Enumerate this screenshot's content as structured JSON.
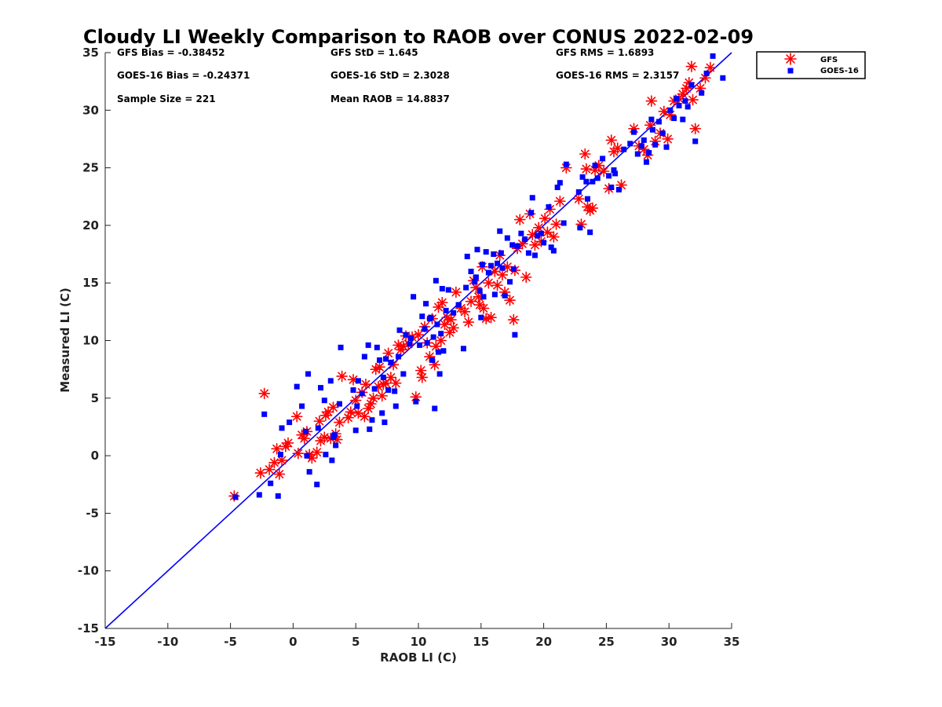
{
  "chart_data": {
    "type": "scatter",
    "title": "Cloudy LI Weekly Comparison to RAOB over CONUS 2022-02-09",
    "xlabel": "RAOB LI (C)",
    "ylabel": "Measured LI (C)",
    "xlim": [
      -15,
      35
    ],
    "ylim": [
      -15,
      35
    ],
    "xticks": [
      -15,
      -10,
      -5,
      0,
      5,
      10,
      15,
      20,
      25,
      30,
      35
    ],
    "yticks": [
      -15,
      -10,
      -5,
      0,
      5,
      10,
      15,
      20,
      25,
      30,
      35
    ],
    "grid": false,
    "legend_position": "outside top-right",
    "reference_line": {
      "x": [
        -15,
        35
      ],
      "y": [
        -15,
        35
      ],
      "color": "#0000ff"
    },
    "stats": {
      "gfs_bias": "GFS Bias = -0.38452",
      "goes_bias": "GOES-16 Bias = -0.24371",
      "sample_size": "Sample Size = 221",
      "gfs_std": "GFS StD = 1.645",
      "goes_std": "GOES-16 StD = 2.3028",
      "mean_raob": "Mean RAOB = 14.8837",
      "gfs_rms": "GFS RMS = 1.6893",
      "goes_rms": "GOES-16 RMS = 2.3157"
    },
    "series": [
      {
        "name": "GFS",
        "marker": "asterisk",
        "color": "#ff0000",
        "points": [
          [
            -4.7,
            -3.5
          ],
          [
            -2.6,
            -1.5
          ],
          [
            -2.3,
            5.4
          ],
          [
            -1.9,
            -1.2
          ],
          [
            -1.5,
            -0.6
          ],
          [
            -1.3,
            0.6
          ],
          [
            -1.1,
            -1.6
          ],
          [
            -0.9,
            -0.4
          ],
          [
            -0.6,
            0.8
          ],
          [
            -0.4,
            1.1
          ],
          [
            0.3,
            3.4
          ],
          [
            0.4,
            0.2
          ],
          [
            0.7,
            1.8
          ],
          [
            0.9,
            1.5
          ],
          [
            1.1,
            2.1
          ],
          [
            1.3,
            0.1
          ],
          [
            1.5,
            -0.2
          ],
          [
            1.9,
            0.3
          ],
          [
            2.1,
            3.0
          ],
          [
            2.2,
            1.3
          ],
          [
            2.5,
            1.6
          ],
          [
            2.6,
            3.5
          ],
          [
            2.8,
            3.8
          ],
          [
            3.0,
            1.5
          ],
          [
            3.2,
            4.2
          ],
          [
            3.4,
            1.9
          ],
          [
            3.5,
            1.4
          ],
          [
            3.7,
            2.9
          ],
          [
            3.9,
            6.9
          ],
          [
            4.4,
            3.3
          ],
          [
            4.6,
            3.8
          ],
          [
            4.8,
            6.6
          ],
          [
            5.0,
            4.8
          ],
          [
            5.2,
            3.7
          ],
          [
            5.5,
            5.5
          ],
          [
            5.7,
            3.4
          ],
          [
            5.8,
            6.2
          ],
          [
            6.0,
            4.1
          ],
          [
            6.2,
            4.5
          ],
          [
            6.4,
            5.0
          ],
          [
            6.6,
            7.5
          ],
          [
            6.8,
            6.0
          ],
          [
            6.9,
            7.7
          ],
          [
            7.1,
            5.2
          ],
          [
            7.2,
            6.2
          ],
          [
            7.4,
            6.3
          ],
          [
            7.6,
            8.9
          ],
          [
            7.8,
            6.8
          ],
          [
            8.0,
            7.9
          ],
          [
            8.2,
            6.3
          ],
          [
            8.4,
            9.6
          ],
          [
            8.6,
            9.2
          ],
          [
            8.8,
            9.5
          ],
          [
            9.0,
            10.4
          ],
          [
            9.2,
            9.7
          ],
          [
            9.5,
            10.3
          ],
          [
            9.8,
            5.1
          ],
          [
            10.0,
            10.5
          ],
          [
            10.2,
            7.4
          ],
          [
            10.3,
            6.8
          ],
          [
            10.5,
            11.2
          ],
          [
            10.7,
            9.8
          ],
          [
            10.9,
            8.6
          ],
          [
            11.1,
            11.9
          ],
          [
            11.3,
            7.9
          ],
          [
            11.4,
            9.5
          ],
          [
            11.6,
            12.9
          ],
          [
            11.8,
            10.0
          ],
          [
            11.9,
            13.3
          ],
          [
            12.1,
            11.4
          ],
          [
            12.3,
            12.0
          ],
          [
            12.5,
            10.7
          ],
          [
            12.6,
            11.8
          ],
          [
            12.8,
            11.1
          ],
          [
            13.0,
            14.2
          ],
          [
            13.4,
            12.8
          ],
          [
            13.7,
            12.5
          ],
          [
            14.0,
            11.6
          ],
          [
            14.2,
            13.4
          ],
          [
            14.4,
            15.2
          ],
          [
            14.6,
            14.6
          ],
          [
            14.8,
            13.8
          ],
          [
            14.9,
            13.1
          ],
          [
            15.1,
            16.4
          ],
          [
            15.2,
            12.8
          ],
          [
            15.4,
            11.9
          ],
          [
            15.6,
            15.0
          ],
          [
            15.8,
            12.0
          ],
          [
            16.1,
            16.0
          ],
          [
            16.3,
            14.8
          ],
          [
            16.5,
            17.4
          ],
          [
            16.7,
            15.7
          ],
          [
            16.9,
            14.2
          ],
          [
            17.1,
            16.4
          ],
          [
            17.3,
            13.5
          ],
          [
            17.6,
            11.8
          ],
          [
            17.7,
            16.1
          ],
          [
            17.9,
            18.0
          ],
          [
            18.1,
            20.5
          ],
          [
            18.3,
            18.4
          ],
          [
            18.6,
            15.5
          ],
          [
            18.9,
            21.0
          ],
          [
            19.1,
            19.2
          ],
          [
            19.3,
            18.3
          ],
          [
            19.6,
            19.8
          ],
          [
            19.8,
            18.6
          ],
          [
            20.1,
            20.6
          ],
          [
            20.3,
            19.4
          ],
          [
            20.5,
            21.4
          ],
          [
            20.8,
            19.0
          ],
          [
            21.0,
            20.1
          ],
          [
            21.3,
            22.1
          ],
          [
            21.8,
            25.0
          ],
          [
            22.8,
            22.3
          ],
          [
            23.0,
            20.1
          ],
          [
            23.3,
            26.2
          ],
          [
            23.4,
            24.9
          ],
          [
            23.5,
            21.6
          ],
          [
            23.7,
            21.3
          ],
          [
            23.9,
            21.5
          ],
          [
            24.1,
            24.8
          ],
          [
            24.4,
            25.2
          ],
          [
            24.8,
            24.7
          ],
          [
            25.2,
            23.2
          ],
          [
            25.4,
            27.4
          ],
          [
            25.6,
            26.4
          ],
          [
            25.9,
            26.7
          ],
          [
            26.2,
            23.5
          ],
          [
            27.2,
            28.4
          ],
          [
            27.6,
            26.9
          ],
          [
            28.0,
            26.6
          ],
          [
            28.3,
            26.1
          ],
          [
            28.5,
            28.7
          ],
          [
            28.6,
            30.8
          ],
          [
            28.9,
            27.3
          ],
          [
            29.3,
            28.0
          ],
          [
            29.6,
            29.9
          ],
          [
            29.9,
            27.5
          ],
          [
            30.1,
            29.6
          ],
          [
            30.4,
            30.8
          ],
          [
            30.8,
            31.0
          ],
          [
            31.1,
            31.4
          ],
          [
            31.4,
            31.9
          ],
          [
            31.8,
            33.8
          ],
          [
            31.9,
            30.9
          ],
          [
            32.1,
            28.4
          ],
          [
            32.5,
            31.9
          ],
          [
            32.9,
            32.8
          ],
          [
            33.3,
            33.7
          ],
          [
            31.6,
            32.4
          ]
        ]
      },
      {
        "name": "GOES-16",
        "marker": "square",
        "color": "#0000ff",
        "points": [
          [
            -4.6,
            -3.6
          ],
          [
            -2.7,
            -3.4
          ],
          [
            -2.3,
            3.6
          ],
          [
            -1.8,
            -2.4
          ],
          [
            -1.2,
            -3.5
          ],
          [
            -1.0,
            0.1
          ],
          [
            -0.9,
            2.4
          ],
          [
            -0.3,
            2.9
          ],
          [
            0.3,
            6.0
          ],
          [
            0.7,
            4.3
          ],
          [
            1.0,
            2.1
          ],
          [
            1.1,
            0.0
          ],
          [
            1.2,
            7.1
          ],
          [
            1.3,
            -1.4
          ],
          [
            1.9,
            -2.5
          ],
          [
            2.0,
            2.4
          ],
          [
            2.2,
            5.9
          ],
          [
            2.5,
            4.8
          ],
          [
            2.6,
            0.1
          ],
          [
            3.0,
            6.5
          ],
          [
            3.1,
            -0.4
          ],
          [
            3.2,
            1.6
          ],
          [
            3.3,
            1.8
          ],
          [
            3.4,
            0.9
          ],
          [
            3.7,
            4.5
          ],
          [
            3.8,
            9.4
          ],
          [
            4.8,
            5.7
          ],
          [
            5.0,
            2.2
          ],
          [
            5.1,
            4.3
          ],
          [
            5.2,
            6.5
          ],
          [
            5.5,
            5.4
          ],
          [
            5.7,
            8.6
          ],
          [
            6.0,
            9.6
          ],
          [
            6.1,
            2.3
          ],
          [
            6.3,
            3.1
          ],
          [
            6.5,
            5.8
          ],
          [
            6.7,
            9.4
          ],
          [
            6.9,
            8.3
          ],
          [
            7.1,
            3.7
          ],
          [
            7.2,
            6.8
          ],
          [
            7.3,
            2.9
          ],
          [
            7.4,
            8.4
          ],
          [
            7.6,
            5.7
          ],
          [
            7.8,
            8.1
          ],
          [
            8.1,
            5.6
          ],
          [
            8.2,
            4.3
          ],
          [
            8.4,
            8.6
          ],
          [
            8.5,
            10.9
          ],
          [
            8.8,
            7.1
          ],
          [
            9.0,
            10.5
          ],
          [
            9.4,
            10.2
          ],
          [
            9.6,
            13.8
          ],
          [
            9.8,
            4.7
          ],
          [
            10.1,
            9.6
          ],
          [
            10.3,
            12.1
          ],
          [
            10.5,
            11.0
          ],
          [
            10.6,
            13.2
          ],
          [
            10.7,
            9.8
          ],
          [
            10.9,
            11.9
          ],
          [
            11.0,
            12.0
          ],
          [
            11.1,
            8.3
          ],
          [
            11.2,
            10.3
          ],
          [
            11.3,
            4.1
          ],
          [
            11.4,
            15.2
          ],
          [
            11.5,
            11.4
          ],
          [
            11.6,
            9.0
          ],
          [
            11.7,
            7.1
          ],
          [
            11.8,
            10.6
          ],
          [
            11.9,
            14.5
          ],
          [
            12.0,
            9.1
          ],
          [
            12.2,
            12.6
          ],
          [
            12.4,
            14.4
          ],
          [
            12.8,
            12.4
          ],
          [
            13.2,
            13.1
          ],
          [
            13.6,
            9.3
          ],
          [
            13.8,
            14.6
          ],
          [
            13.9,
            17.3
          ],
          [
            14.2,
            16.0
          ],
          [
            14.6,
            15.5
          ],
          [
            14.7,
            17.9
          ],
          [
            14.9,
            14.3
          ],
          [
            15.0,
            12.0
          ],
          [
            15.1,
            16.6
          ],
          [
            15.2,
            13.8
          ],
          [
            15.4,
            17.7
          ],
          [
            15.6,
            15.9
          ],
          [
            15.8,
            16.5
          ],
          [
            16.0,
            17.5
          ],
          [
            16.1,
            14.0
          ],
          [
            16.3,
            16.7
          ],
          [
            16.5,
            19.5
          ],
          [
            16.7,
            16.3
          ],
          [
            16.9,
            13.9
          ],
          [
            17.1,
            18.9
          ],
          [
            17.3,
            15.1
          ],
          [
            17.5,
            18.3
          ],
          [
            17.6,
            16.2
          ],
          [
            17.7,
            10.5
          ],
          [
            17.9,
            18.2
          ],
          [
            18.2,
            19.3
          ],
          [
            18.5,
            18.8
          ],
          [
            18.8,
            17.6
          ],
          [
            19.0,
            21.1
          ],
          [
            19.1,
            22.4
          ],
          [
            19.3,
            17.4
          ],
          [
            19.5,
            19.1
          ],
          [
            19.8,
            19.3
          ],
          [
            20.0,
            18.5
          ],
          [
            20.4,
            21.6
          ],
          [
            20.6,
            18.1
          ],
          [
            20.8,
            17.8
          ],
          [
            21.1,
            23.3
          ],
          [
            21.3,
            23.7
          ],
          [
            21.6,
            20.2
          ],
          [
            21.8,
            25.3
          ],
          [
            22.8,
            22.9
          ],
          [
            22.9,
            19.8
          ],
          [
            23.1,
            24.2
          ],
          [
            23.4,
            23.8
          ],
          [
            23.5,
            22.3
          ],
          [
            23.7,
            19.4
          ],
          [
            23.9,
            23.8
          ],
          [
            24.1,
            25.2
          ],
          [
            24.3,
            24.1
          ],
          [
            24.7,
            25.8
          ],
          [
            25.2,
            24.3
          ],
          [
            25.4,
            23.3
          ],
          [
            25.6,
            24.8
          ],
          [
            25.7,
            24.5
          ],
          [
            26.0,
            23.1
          ],
          [
            26.4,
            26.6
          ],
          [
            26.9,
            27.1
          ],
          [
            27.2,
            28.1
          ],
          [
            27.5,
            26.2
          ],
          [
            28.0,
            27.4
          ],
          [
            28.2,
            25.5
          ],
          [
            28.4,
            26.3
          ],
          [
            28.7,
            28.3
          ],
          [
            28.9,
            27.0
          ],
          [
            29.2,
            29.0
          ],
          [
            29.5,
            28.0
          ],
          [
            29.8,
            26.8
          ],
          [
            30.1,
            30.0
          ],
          [
            30.4,
            29.3
          ],
          [
            30.8,
            30.4
          ],
          [
            31.1,
            29.2
          ],
          [
            31.5,
            30.3
          ],
          [
            31.8,
            32.2
          ],
          [
            32.1,
            27.3
          ],
          [
            32.6,
            31.5
          ],
          [
            33.0,
            33.2
          ],
          [
            33.5,
            34.7
          ],
          [
            34.3,
            32.8
          ],
          [
            31.3,
            30.8
          ],
          [
            30.6,
            31.0
          ],
          [
            28.6,
            29.2
          ],
          [
            27.8,
            26.9
          ],
          [
            16.6,
            17.6
          ],
          [
            14.5,
            15.1
          ],
          [
            9.3,
            9.7
          ]
        ]
      }
    ]
  }
}
